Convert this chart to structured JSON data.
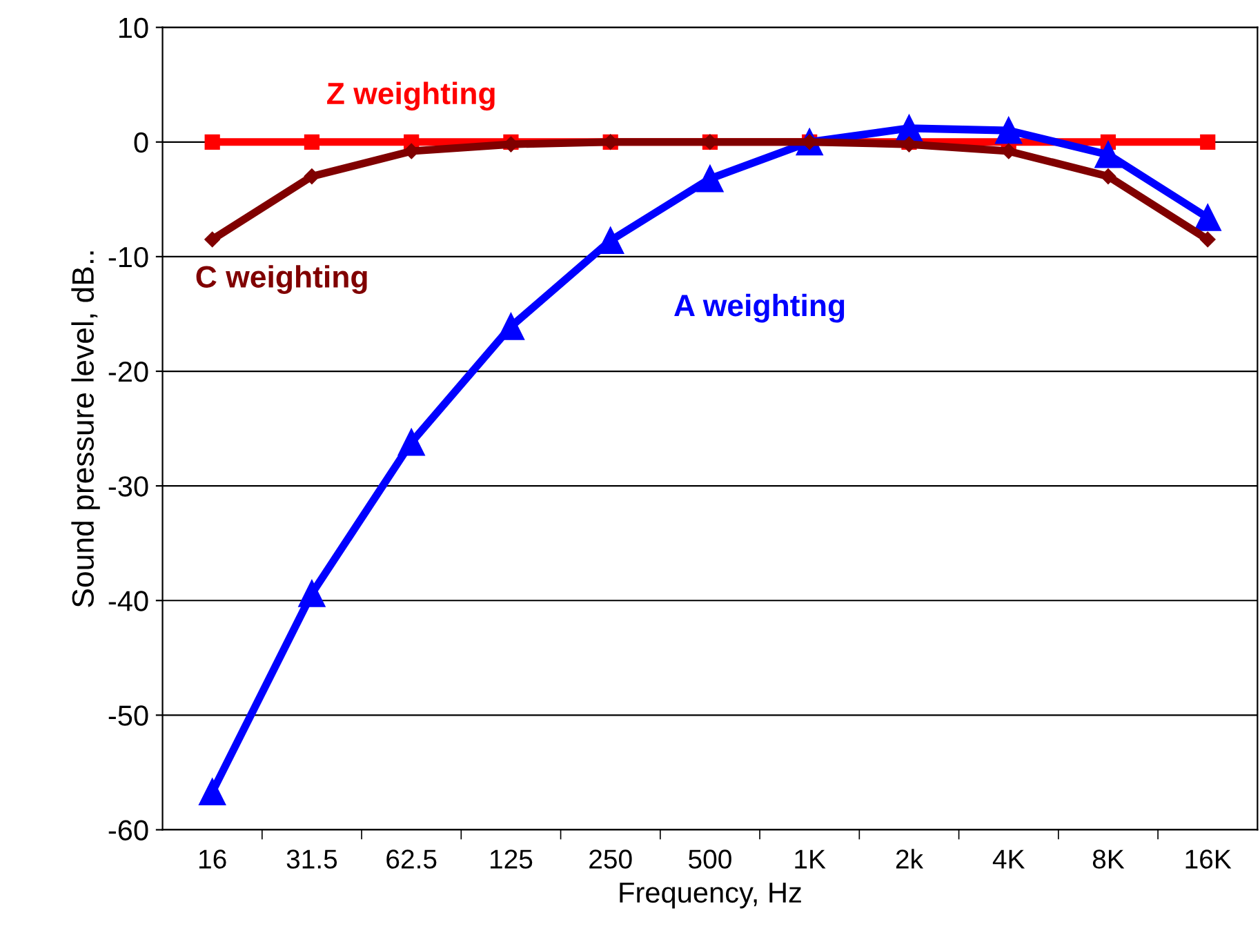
{
  "chart_data": {
    "type": "line",
    "xlabel": "Frequency, Hz",
    "ylabel": "Sound pressure level, dB..",
    "categories": [
      "16",
      "31.5",
      "62.5",
      "125",
      "250",
      "500",
      "1K",
      "2k",
      "4K",
      "8K",
      "16K"
    ],
    "series": [
      {
        "name": "Z weighting",
        "color": "#ff0000",
        "marker": "square",
        "values": [
          0,
          0,
          0,
          0,
          0,
          0,
          0,
          0,
          0,
          0,
          0
        ]
      },
      {
        "name": "C weighting",
        "color": "#800000",
        "marker": "diamond",
        "values": [
          -8.5,
          -3,
          -0.8,
          -0.2,
          0,
          0,
          0,
          -0.2,
          -0.8,
          -3,
          -8.5
        ]
      },
      {
        "name": "A weighting",
        "color": "#0000ff",
        "marker": "triangle",
        "values": [
          -56.7,
          -39.4,
          -26.2,
          -16.1,
          -8.6,
          -3.2,
          0,
          1.2,
          1,
          -1.1,
          -6.6
        ]
      }
    ],
    "ylim": [
      -60,
      10
    ],
    "yticks": [
      -60,
      -50,
      -40,
      -30,
      -20,
      -10,
      0,
      10
    ],
    "grid": "y",
    "line_style": "solid"
  }
}
